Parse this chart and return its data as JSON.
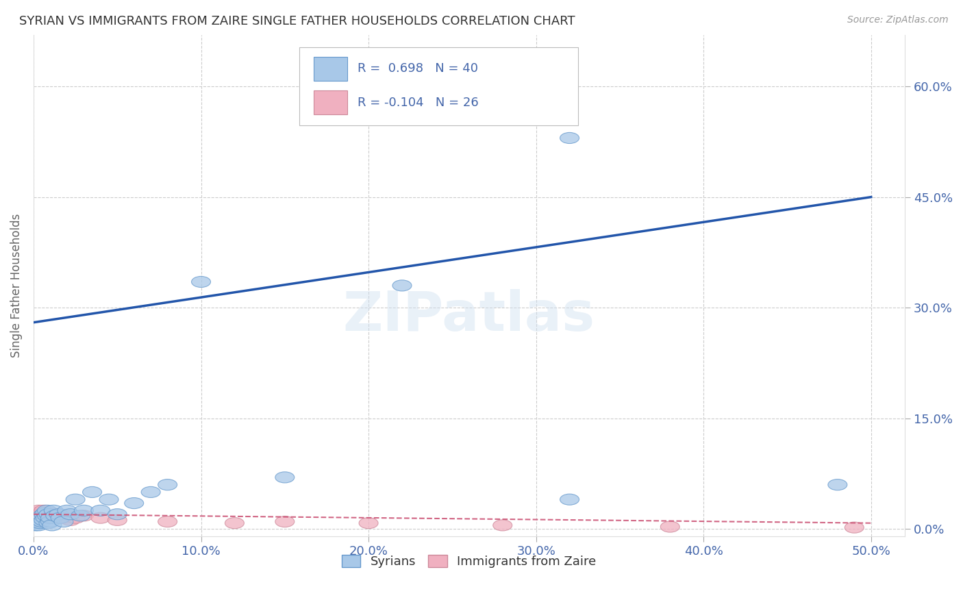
{
  "title": "SYRIAN VS IMMIGRANTS FROM ZAIRE SINGLE FATHER HOUSEHOLDS CORRELATION CHART",
  "source": "Source: ZipAtlas.com",
  "ylabel": "Single Father Households",
  "xlabel_ticks": [
    "0.0%",
    "10.0%",
    "20.0%",
    "30.0%",
    "40.0%",
    "50.0%"
  ],
  "ylabel_ticks_right": [
    "0.0%",
    "15.0%",
    "30.0%",
    "45.0%",
    "60.0%"
  ],
  "xlim": [
    0.0,
    0.52
  ],
  "ylim": [
    -0.01,
    0.67
  ],
  "legend_r1": "R =  0.698   N = 40",
  "legend_r2": "R = -0.104   N = 26",
  "legend_label1": "Syrians",
  "legend_label2": "Immigrants from Zaire",
  "syrians_color": "#a8c8e8",
  "syrians_edge": "#6699cc",
  "zaire_color": "#f0b0c0",
  "zaire_edge": "#cc8899",
  "trend_blue": "#2255aa",
  "trend_pink": "#cc5577",
  "watermark": "ZIPatlas",
  "title_color": "#333333",
  "tick_color": "#4466aa",
  "background_color": "#ffffff",
  "grid_color": "#cccccc",
  "syrians_x": [
    0.001,
    0.002,
    0.002,
    0.003,
    0.003,
    0.004,
    0.004,
    0.005,
    0.005,
    0.006,
    0.006,
    0.007,
    0.007,
    0.008,
    0.008,
    0.009,
    0.009,
    0.01,
    0.01,
    0.011,
    0.012,
    0.013,
    0.015,
    0.016,
    0.018,
    0.02,
    0.022,
    0.025,
    0.028,
    0.03,
    0.035,
    0.04,
    0.045,
    0.05,
    0.06,
    0.07,
    0.08,
    0.1,
    0.15,
    0.32
  ],
  "syrians_y": [
    0.005,
    0.008,
    0.01,
    0.005,
    0.012,
    0.008,
    0.015,
    0.01,
    0.018,
    0.012,
    0.02,
    0.015,
    0.022,
    0.018,
    0.025,
    0.02,
    0.008,
    0.01,
    0.015,
    0.005,
    0.025,
    0.018,
    0.02,
    0.015,
    0.01,
    0.025,
    0.02,
    0.04,
    0.018,
    0.025,
    0.05,
    0.025,
    0.04,
    0.02,
    0.035,
    0.05,
    0.06,
    0.335,
    0.07,
    0.04
  ],
  "syrians_outlier_x": [
    0.32
  ],
  "syrians_outlier_y": [
    0.53
  ],
  "syrians_outlier2_x": [
    0.48
  ],
  "syrians_outlier2_y": [
    0.06
  ],
  "syrians_mid_x": [
    0.22
  ],
  "syrians_mid_y": [
    0.33
  ],
  "zaire_x": [
    0.001,
    0.002,
    0.003,
    0.004,
    0.005,
    0.006,
    0.007,
    0.008,
    0.009,
    0.01,
    0.012,
    0.015,
    0.018,
    0.02,
    0.022,
    0.025,
    0.03,
    0.04,
    0.05,
    0.08,
    0.12,
    0.15,
    0.2,
    0.28,
    0.38,
    0.49
  ],
  "zaire_y": [
    0.018,
    0.022,
    0.025,
    0.02,
    0.015,
    0.025,
    0.018,
    0.02,
    0.015,
    0.022,
    0.018,
    0.02,
    0.015,
    0.018,
    0.012,
    0.015,
    0.018,
    0.015,
    0.012,
    0.01,
    0.008,
    0.01,
    0.008,
    0.005,
    0.003,
    0.002
  ],
  "trend_syr_x0": 0.0,
  "trend_syr_y0": 0.28,
  "trend_syr_x1": 0.5,
  "trend_syr_y1": 0.45,
  "trend_zaire_x0": 0.0,
  "trend_zaire_y0": 0.02,
  "trend_zaire_x1": 0.5,
  "trend_zaire_y1": 0.008
}
